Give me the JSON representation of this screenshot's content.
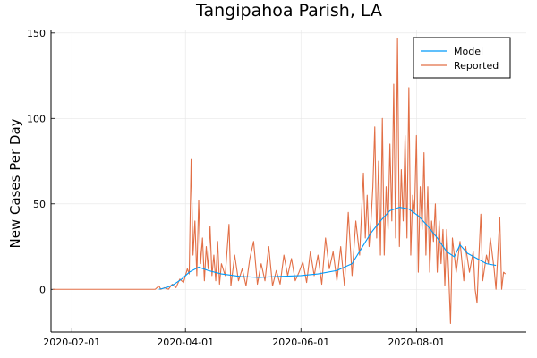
{
  "chart_data": {
    "type": "line",
    "title": "Tangipahoa Parish, LA",
    "xlabel": "",
    "ylabel": "New Cases Per Day",
    "x_ticks": [
      "2020-02-01",
      "2020-04-01",
      "2020-06-01",
      "2020-08-01"
    ],
    "y_ticks": [
      "0",
      "50",
      "100",
      "150"
    ],
    "xlim": [
      "2020-01-21",
      "2020-09-28"
    ],
    "ylim": [
      -25,
      152
    ],
    "grid": true,
    "legend": "top-right",
    "series": [
      {
        "name": "Model",
        "color": "#009af9",
        "points": [
          [
            "2020-03-18",
            0
          ],
          [
            "2020-03-22",
            1
          ],
          [
            "2020-03-26",
            3
          ],
          [
            "2020-03-30",
            6
          ],
          [
            "2020-04-03",
            10
          ],
          [
            "2020-04-08",
            13
          ],
          [
            "2020-04-13",
            11
          ],
          [
            "2020-04-20",
            9
          ],
          [
            "2020-04-30",
            7.5
          ],
          [
            "2020-05-10",
            7
          ],
          [
            "2020-05-20",
            7.5
          ],
          [
            "2020-06-01",
            8
          ],
          [
            "2020-06-10",
            9
          ],
          [
            "2020-06-20",
            11
          ],
          [
            "2020-06-28",
            15
          ],
          [
            "2020-07-03",
            24
          ],
          [
            "2020-07-08",
            33
          ],
          [
            "2020-07-13",
            40
          ],
          [
            "2020-07-18",
            46
          ],
          [
            "2020-07-23",
            48
          ],
          [
            "2020-07-28",
            47
          ],
          [
            "2020-08-02",
            43
          ],
          [
            "2020-08-07",
            37
          ],
          [
            "2020-08-12",
            30
          ],
          [
            "2020-08-17",
            22
          ],
          [
            "2020-08-21",
            19
          ],
          [
            "2020-08-24",
            26
          ],
          [
            "2020-08-28",
            21
          ],
          [
            "2020-09-02",
            18
          ],
          [
            "2020-09-07",
            15
          ],
          [
            "2020-09-12",
            14
          ]
        ]
      },
      {
        "name": "Reported",
        "color": "#e26f46",
        "points": [
          [
            "2020-01-22",
            0
          ],
          [
            "2020-02-15",
            0
          ],
          [
            "2020-03-10",
            0
          ],
          [
            "2020-03-16",
            0
          ],
          [
            "2020-03-18",
            2
          ],
          [
            "2020-03-19",
            0
          ],
          [
            "2020-03-21",
            1
          ],
          [
            "2020-03-23",
            0
          ],
          [
            "2020-03-25",
            3
          ],
          [
            "2020-03-27",
            1
          ],
          [
            "2020-03-29",
            6
          ],
          [
            "2020-03-31",
            4
          ],
          [
            "2020-04-02",
            12
          ],
          [
            "2020-04-03",
            9
          ],
          [
            "2020-04-04",
            76
          ],
          [
            "2020-04-05",
            20
          ],
          [
            "2020-04-06",
            40
          ],
          [
            "2020-04-07",
            8
          ],
          [
            "2020-04-08",
            52
          ],
          [
            "2020-04-09",
            15
          ],
          [
            "2020-04-10",
            30
          ],
          [
            "2020-04-11",
            5
          ],
          [
            "2020-04-12",
            25
          ],
          [
            "2020-04-13",
            12
          ],
          [
            "2020-04-14",
            37
          ],
          [
            "2020-04-15",
            8
          ],
          [
            "2020-04-16",
            20
          ],
          [
            "2020-04-17",
            5
          ],
          [
            "2020-04-18",
            28
          ],
          [
            "2020-04-19",
            3
          ],
          [
            "2020-04-20",
            15
          ],
          [
            "2020-04-22",
            8
          ],
          [
            "2020-04-24",
            38
          ],
          [
            "2020-04-25",
            2
          ],
          [
            "2020-04-27",
            20
          ],
          [
            "2020-04-29",
            5
          ],
          [
            "2020-05-01",
            12
          ],
          [
            "2020-05-03",
            2
          ],
          [
            "2020-05-05",
            18
          ],
          [
            "2020-05-07",
            28
          ],
          [
            "2020-05-09",
            3
          ],
          [
            "2020-05-11",
            15
          ],
          [
            "2020-05-13",
            5
          ],
          [
            "2020-05-15",
            25
          ],
          [
            "2020-05-17",
            2
          ],
          [
            "2020-05-19",
            11
          ],
          [
            "2020-05-21",
            3
          ],
          [
            "2020-05-23",
            20
          ],
          [
            "2020-05-25",
            8
          ],
          [
            "2020-05-27",
            18
          ],
          [
            "2020-05-29",
            5
          ],
          [
            "2020-05-31",
            10
          ],
          [
            "2020-06-02",
            16
          ],
          [
            "2020-06-04",
            4
          ],
          [
            "2020-06-06",
            22
          ],
          [
            "2020-06-08",
            8
          ],
          [
            "2020-06-10",
            20
          ],
          [
            "2020-06-12",
            3
          ],
          [
            "2020-06-14",
            30
          ],
          [
            "2020-06-16",
            12
          ],
          [
            "2020-06-18",
            22
          ],
          [
            "2020-06-20",
            5
          ],
          [
            "2020-06-22",
            25
          ],
          [
            "2020-06-24",
            2
          ],
          [
            "2020-06-26",
            45
          ],
          [
            "2020-06-28",
            8
          ],
          [
            "2020-06-30",
            40
          ],
          [
            "2020-07-02",
            20
          ],
          [
            "2020-07-04",
            68
          ],
          [
            "2020-07-05",
            30
          ],
          [
            "2020-07-06",
            55
          ],
          [
            "2020-07-07",
            25
          ],
          [
            "2020-07-08",
            40
          ],
          [
            "2020-07-09",
            60
          ],
          [
            "2020-07-10",
            95
          ],
          [
            "2020-07-11",
            30
          ],
          [
            "2020-07-12",
            75
          ],
          [
            "2020-07-13",
            20
          ],
          [
            "2020-07-14",
            100
          ],
          [
            "2020-07-15",
            20
          ],
          [
            "2020-07-16",
            60
          ],
          [
            "2020-07-17",
            35
          ],
          [
            "2020-07-18",
            85
          ],
          [
            "2020-07-19",
            40
          ],
          [
            "2020-07-20",
            120
          ],
          [
            "2020-07-21",
            30
          ],
          [
            "2020-07-22",
            147
          ],
          [
            "2020-07-23",
            25
          ],
          [
            "2020-07-24",
            70
          ],
          [
            "2020-07-25",
            40
          ],
          [
            "2020-07-26",
            90
          ],
          [
            "2020-07-27",
            30
          ],
          [
            "2020-07-28",
            118
          ],
          [
            "2020-07-29",
            20
          ],
          [
            "2020-07-30",
            55
          ],
          [
            "2020-07-31",
            45
          ],
          [
            "2020-08-01",
            90
          ],
          [
            "2020-08-02",
            10
          ],
          [
            "2020-08-03",
            60
          ],
          [
            "2020-08-04",
            35
          ],
          [
            "2020-08-05",
            80
          ],
          [
            "2020-08-06",
            20
          ],
          [
            "2020-08-07",
            60
          ],
          [
            "2020-08-08",
            10
          ],
          [
            "2020-08-09",
            40
          ],
          [
            "2020-08-10",
            28
          ],
          [
            "2020-08-11",
            50
          ],
          [
            "2020-08-12",
            10
          ],
          [
            "2020-08-13",
            40
          ],
          [
            "2020-08-14",
            15
          ],
          [
            "2020-08-15",
            35
          ],
          [
            "2020-08-16",
            2
          ],
          [
            "2020-08-17",
            35
          ],
          [
            "2020-08-18",
            10
          ],
          [
            "2020-08-19",
            -20
          ],
          [
            "2020-08-20",
            30
          ],
          [
            "2020-08-22",
            10
          ],
          [
            "2020-08-24",
            28
          ],
          [
            "2020-08-26",
            5
          ],
          [
            "2020-08-27",
            25
          ],
          [
            "2020-08-29",
            10
          ],
          [
            "2020-08-31",
            22
          ],
          [
            "2020-09-01",
            0
          ],
          [
            "2020-09-02",
            -8
          ],
          [
            "2020-09-03",
            20
          ],
          [
            "2020-09-04",
            44
          ],
          [
            "2020-09-05",
            5
          ],
          [
            "2020-09-07",
            20
          ],
          [
            "2020-09-08",
            15
          ],
          [
            "2020-09-09",
            30
          ],
          [
            "2020-09-11",
            12
          ],
          [
            "2020-09-12",
            0
          ],
          [
            "2020-09-14",
            42
          ],
          [
            "2020-09-15",
            0
          ],
          [
            "2020-09-16",
            10
          ],
          [
            "2020-09-17",
            9
          ]
        ]
      }
    ]
  }
}
